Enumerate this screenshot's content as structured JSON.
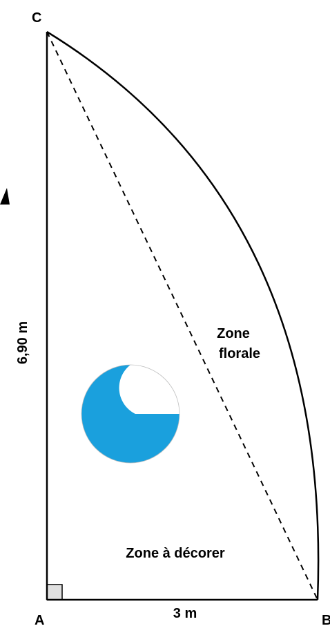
{
  "points": {
    "a": "A",
    "b": "B",
    "c": "C"
  },
  "dimensions": {
    "height_label": "6,90 m",
    "base_label": "3 m"
  },
  "zones": {
    "floral_line1": "Zone",
    "floral_line2": "florale",
    "decorate": "Zone à décorer"
  },
  "colors": {
    "pool_fill": "#1aa0dd",
    "outline": "#000000",
    "right_angle_fill": "#e0e0e0"
  },
  "icons": {
    "pool": "circular-basin-icon",
    "partial_arrow": "arrowhead-icon"
  }
}
